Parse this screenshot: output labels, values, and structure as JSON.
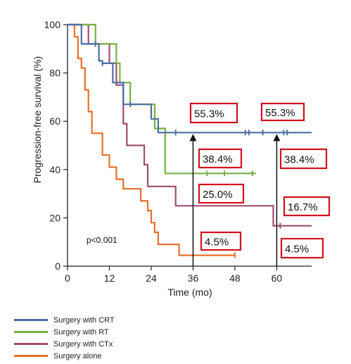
{
  "chart_data": {
    "type": "line",
    "subtype": "kaplan-meier step",
    "xlabel": "Time (mo)",
    "ylabel": "Progression-free survival (%)",
    "xlim": [
      0,
      70
    ],
    "ylim": [
      0,
      100
    ],
    "xticks": [
      0,
      12,
      24,
      36,
      48,
      60
    ],
    "yticks": [
      0,
      20,
      40,
      60,
      80,
      100
    ],
    "pvalue_text": "p<0.001",
    "grid": false,
    "legend_position": "bottom-left",
    "series": [
      {
        "name": "Surgery with CRT",
        "color": "#4a6fa5",
        "steps": [
          [
            0,
            100
          ],
          [
            4,
            100
          ],
          [
            4,
            92
          ],
          [
            9,
            92
          ],
          [
            9,
            85
          ],
          [
            10,
            85
          ],
          [
            10,
            84
          ],
          [
            13,
            84
          ],
          [
            13,
            76
          ],
          [
            16,
            76
          ],
          [
            16,
            67
          ],
          [
            24,
            67
          ],
          [
            24,
            61
          ],
          [
            26,
            61
          ],
          [
            26,
            55.3
          ],
          [
            70,
            55.3
          ]
        ],
        "censor_x": [
          8,
          10,
          18,
          31,
          51,
          52,
          56,
          62,
          63
        ]
      },
      {
        "name": "Surgery with RT",
        "color": "#76b041",
        "steps": [
          [
            0,
            100
          ],
          [
            8,
            100
          ],
          [
            8,
            92
          ],
          [
            14,
            92
          ],
          [
            14,
            84
          ],
          [
            15,
            84
          ],
          [
            15,
            76
          ],
          [
            18,
            76
          ],
          [
            18,
            67
          ],
          [
            25,
            67
          ],
          [
            25,
            57
          ],
          [
            28,
            57
          ],
          [
            28,
            38.4
          ],
          [
            54,
            38.4
          ]
        ],
        "censor_x": [
          40,
          45,
          53
        ]
      },
      {
        "name": "Surgery with CTx",
        "color": "#a04d6e",
        "steps": [
          [
            0,
            100
          ],
          [
            6,
            100
          ],
          [
            6,
            92
          ],
          [
            12,
            92
          ],
          [
            12,
            84
          ],
          [
            14,
            84
          ],
          [
            14,
            75
          ],
          [
            16,
            75
          ],
          [
            16,
            59
          ],
          [
            17,
            59
          ],
          [
            17,
            50
          ],
          [
            22,
            50
          ],
          [
            22,
            42
          ],
          [
            23,
            42
          ],
          [
            23,
            33
          ],
          [
            31,
            33
          ],
          [
            31,
            25
          ],
          [
            59,
            25
          ],
          [
            59,
            16.7
          ],
          [
            70,
            16.7
          ]
        ],
        "censor_x": [
          61
        ]
      },
      {
        "name": "Surgery alone",
        "color": "#e8702a",
        "steps": [
          [
            0,
            100
          ],
          [
            2,
            100
          ],
          [
            2,
            95
          ],
          [
            3,
            95
          ],
          [
            3,
            86
          ],
          [
            4,
            86
          ],
          [
            4,
            82
          ],
          [
            5,
            82
          ],
          [
            5,
            73
          ],
          [
            6,
            73
          ],
          [
            6,
            64
          ],
          [
            7,
            64
          ],
          [
            7,
            55
          ],
          [
            10,
            55
          ],
          [
            10,
            46
          ],
          [
            12,
            46
          ],
          [
            12,
            41
          ],
          [
            14,
            41
          ],
          [
            14,
            36
          ],
          [
            16,
            36
          ],
          [
            16,
            32
          ],
          [
            21,
            32
          ],
          [
            21,
            27
          ],
          [
            23,
            27
          ],
          [
            23,
            23
          ],
          [
            24,
            23
          ],
          [
            24,
            18
          ],
          [
            25,
            18
          ],
          [
            25,
            14
          ],
          [
            26,
            14
          ],
          [
            26,
            9
          ],
          [
            32,
            9
          ],
          [
            32,
            4.5
          ],
          [
            48,
            4.5
          ]
        ],
        "censor_x": [
          48
        ]
      }
    ],
    "arrows": [
      {
        "x": 36,
        "y_from": 0,
        "y_to": 55.3
      },
      {
        "x": 60,
        "y_from": 0,
        "y_to": 55.3
      }
    ],
    "annotations": [
      {
        "text": "55.3%"
      },
      {
        "text": "55.3%"
      },
      {
        "text": "38.4%"
      },
      {
        "text": "38.4%"
      },
      {
        "text": "25.0%"
      },
      {
        "text": "16.7%"
      },
      {
        "text": "4.5%"
      },
      {
        "text": "4.5%"
      }
    ]
  }
}
